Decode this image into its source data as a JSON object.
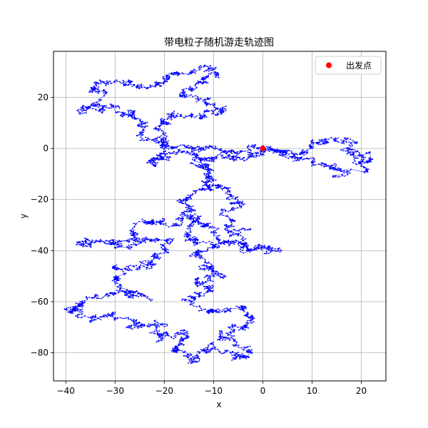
{
  "chart_data": {
    "type": "scatter",
    "title": "带电粒子随机游走轨迹图",
    "xlabel": "x",
    "ylabel": "y",
    "xlim": [
      -42.5,
      25
    ],
    "ylim": [
      -91,
      38
    ],
    "xticks": [
      -40,
      -30,
      -20,
      -10,
      0,
      10,
      20
    ],
    "yticks": [
      -80,
      -60,
      -40,
      -20,
      0,
      20
    ],
    "grid": true,
    "legend_position": "top-right",
    "trajectory_color": "#0000ff",
    "start_marker_color": "#ff0000",
    "start_point": {
      "name": "出发点",
      "x": 0,
      "y": 0
    },
    "trajectory_waypoints": [
      [
        0,
        0
      ],
      [
        -2,
        -4
      ],
      [
        -6,
        -5
      ],
      [
        -10,
        -3
      ],
      [
        -12,
        -6
      ],
      [
        -9,
        -14
      ],
      [
        -6,
        -20
      ],
      [
        -8,
        -30
      ],
      [
        -5,
        -32
      ],
      [
        -3,
        -40
      ],
      [
        3,
        -40
      ],
      [
        -6,
        -38
      ],
      [
        -10,
        -34
      ],
      [
        -14,
        -26
      ],
      [
        -18,
        -30
      ],
      [
        -24,
        -28
      ],
      [
        -26,
        -34
      ],
      [
        -30,
        -36
      ],
      [
        -36,
        -37
      ],
      [
        -28,
        -38
      ],
      [
        -20,
        -36
      ],
      [
        -22,
        -45
      ],
      [
        -26,
        -46
      ],
      [
        -30,
        -50
      ],
      [
        -28,
        -55
      ],
      [
        -24,
        -58
      ],
      [
        -32,
        -57
      ],
      [
        -36,
        -60
      ],
      [
        -40,
        -63
      ],
      [
        -34,
        -66
      ],
      [
        -30,
        -64
      ],
      [
        -26,
        -70
      ],
      [
        -22,
        -68
      ],
      [
        -20,
        -74
      ],
      [
        -16,
        -72
      ],
      [
        -18,
        -80
      ],
      [
        -14,
        -84
      ],
      [
        -10,
        -78
      ],
      [
        -6,
        -82
      ],
      [
        -2,
        -80
      ],
      [
        -8,
        -74
      ],
      [
        -4,
        -70
      ],
      [
        -2,
        -66
      ],
      [
        -6,
        -62
      ],
      [
        -10,
        -64
      ],
      [
        -14,
        -60
      ],
      [
        -10,
        -56
      ],
      [
        -14,
        -52
      ],
      [
        -8,
        -50
      ],
      [
        -12,
        -46
      ],
      [
        -14,
        -42
      ],
      [
        -10,
        -38
      ],
      [
        -14,
        -36
      ],
      [
        -16,
        -20
      ],
      [
        -13,
        -16
      ],
      [
        -10,
        -12
      ],
      [
        -12,
        -8
      ],
      [
        -14,
        -2
      ],
      [
        -18,
        -2
      ],
      [
        -22,
        -6
      ],
      [
        -20,
        2
      ],
      [
        -24,
        6
      ],
      [
        -26,
        12
      ],
      [
        -30,
        16
      ],
      [
        -36,
        14
      ],
      [
        -32,
        20
      ],
      [
        -35,
        24
      ],
      [
        -30,
        26
      ],
      [
        -24,
        24
      ],
      [
        -20,
        28
      ],
      [
        -14,
        30
      ],
      [
        -10,
        31
      ],
      [
        -9,
        29
      ],
      [
        -12,
        26
      ],
      [
        -16,
        22
      ],
      [
        -12,
        18
      ],
      [
        -8,
        16
      ],
      [
        -12,
        12
      ],
      [
        -18,
        14
      ],
      [
        -22,
        8
      ],
      [
        -20,
        2
      ],
      [
        -18,
        0
      ],
      [
        -14,
        0
      ],
      [
        -10,
        0
      ],
      [
        -6,
        -2
      ],
      [
        0,
        0
      ],
      [
        4,
        -2
      ],
      [
        8,
        -2
      ],
      [
        10,
        2
      ],
      [
        14,
        4
      ],
      [
        18,
        2
      ],
      [
        17,
        -2
      ],
      [
        20,
        -4
      ],
      [
        22,
        -3
      ],
      [
        18,
        -8
      ],
      [
        16,
        -10
      ],
      [
        12,
        -6
      ],
      [
        8,
        -4
      ],
      [
        4,
        -2
      ],
      [
        0,
        0
      ]
    ]
  }
}
